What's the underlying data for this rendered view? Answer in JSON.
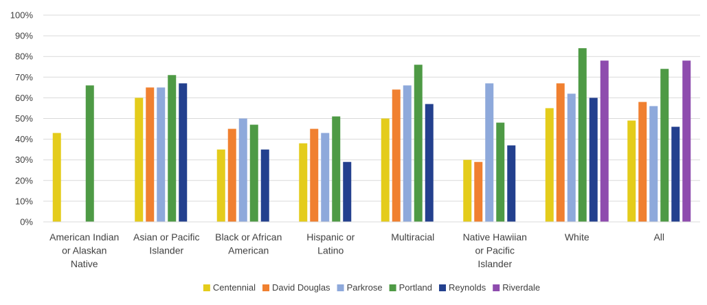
{
  "chart_data": {
    "type": "bar",
    "title": "",
    "xlabel": "",
    "ylabel": "",
    "ylim": [
      0,
      100
    ],
    "y_tick_values": [
      0,
      10,
      20,
      30,
      40,
      50,
      60,
      70,
      80,
      90,
      100
    ],
    "y_tick_labels": [
      "0%",
      "10%",
      "20%",
      "30%",
      "40%",
      "50%",
      "60%",
      "70%",
      "80%",
      "90%",
      "100%"
    ],
    "grid": "horizontal",
    "legend_position": "bottom",
    "categories": [
      [
        "American Indian",
        "or Alaskan",
        "Native"
      ],
      [
        "Asian or Pacific",
        "Islander"
      ],
      [
        "Black or African",
        "American"
      ],
      [
        "Hispanic or",
        "Latino"
      ],
      [
        "Multiracial"
      ],
      [
        "Native Hawiian",
        "or Pacific",
        "Islander"
      ],
      [
        "White"
      ],
      [
        "All"
      ]
    ],
    "series": [
      {
        "name": "Centennial",
        "color": "#E4CC1B",
        "values": [
          43,
          60,
          35,
          38,
          50,
          30,
          55,
          49
        ]
      },
      {
        "name": "David Douglas",
        "color": "#F08030",
        "values": [
          null,
          65,
          45,
          45,
          64,
          29,
          67,
          58
        ]
      },
      {
        "name": "Parkrose",
        "color": "#8EA9DB",
        "values": [
          null,
          65,
          50,
          43,
          66,
          67,
          62,
          56
        ]
      },
      {
        "name": "Portland",
        "color": "#4E9A45",
        "values": [
          66,
          71,
          47,
          51,
          76,
          48,
          84,
          74
        ]
      },
      {
        "name": "Reynolds",
        "color": "#23408E",
        "values": [
          null,
          67,
          35,
          29,
          57,
          37,
          60,
          46
        ]
      },
      {
        "name": "Riverdale",
        "color": "#8E4CAE",
        "values": [
          null,
          null,
          null,
          null,
          null,
          null,
          78,
          78
        ]
      }
    ]
  }
}
